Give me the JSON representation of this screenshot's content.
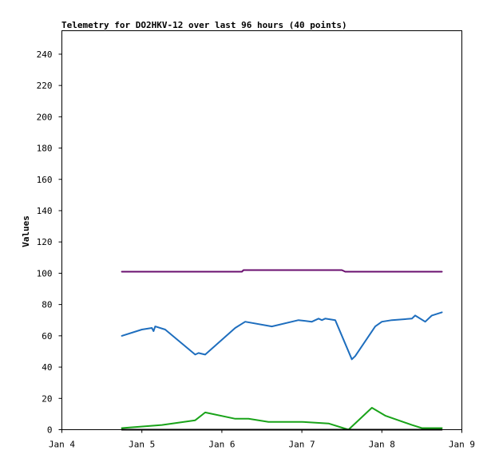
{
  "chart_data": {
    "type": "line",
    "title": "Telemetry for DO2HKV-12 over last 96 hours (40 points)",
    "xlabel": "",
    "ylabel": "Values",
    "xlim": [
      "Jan 4",
      "Jan 9"
    ],
    "ylim": [
      0,
      255
    ],
    "x_ticks": [
      "Jan 4",
      "Jan 5",
      "Jan 6",
      "Jan 7",
      "Jan 8",
      "Jan 9"
    ],
    "y_ticks": [
      0,
      20,
      40,
      60,
      80,
      100,
      120,
      140,
      160,
      180,
      200,
      220,
      240
    ],
    "grid": false,
    "legend": "none",
    "series": [
      {
        "color": "#6a0f6f",
        "points": [
          [
            "Jan 4 18:00",
            101
          ],
          [
            "Jan 5 12:00",
            101
          ],
          [
            "Jan 6 06:00",
            101
          ],
          [
            "Jan 6 06:30",
            102
          ],
          [
            "Jan 7 12:00",
            102
          ],
          [
            "Jan 7 13:00",
            101
          ],
          [
            "Jan 8 18:00",
            101
          ]
        ]
      },
      {
        "color": "#1e6ebe",
        "points": [
          [
            "Jan 4 18:00",
            60
          ],
          [
            "Jan 5 00:00",
            64
          ],
          [
            "Jan 5 03:00",
            65
          ],
          [
            "Jan 5 03:30",
            63
          ],
          [
            "Jan 5 04:00",
            66
          ],
          [
            "Jan 5 07:00",
            64
          ],
          [
            "Jan 5 16:00",
            48
          ],
          [
            "Jan 5 17:00",
            49
          ],
          [
            "Jan 5 19:00",
            48
          ],
          [
            "Jan 6 04:00",
            65
          ],
          [
            "Jan 6 07:00",
            69
          ],
          [
            "Jan 6 15:00",
            66
          ],
          [
            "Jan 6 23:00",
            70
          ],
          [
            "Jan 7 03:00",
            69
          ],
          [
            "Jan 7 05:00",
            71
          ],
          [
            "Jan 7 06:00",
            70
          ],
          [
            "Jan 7 07:00",
            71
          ],
          [
            "Jan 7 10:00",
            70
          ],
          [
            "Jan 7 15:00",
            45
          ],
          [
            "Jan 7 16:00",
            47
          ],
          [
            "Jan 7 22:00",
            66
          ],
          [
            "Jan 8 00:00",
            69
          ],
          [
            "Jan 8 03:00",
            70
          ],
          [
            "Jan 8 09:00",
            71
          ],
          [
            "Jan 8 10:00",
            73
          ],
          [
            "Jan 8 13:00",
            69
          ],
          [
            "Jan 8 15:00",
            73
          ],
          [
            "Jan 8 18:00",
            75
          ]
        ]
      },
      {
        "color": "#19a319",
        "points": [
          [
            "Jan 4 18:00",
            1
          ],
          [
            "Jan 5 06:00",
            3
          ],
          [
            "Jan 5 16:00",
            6
          ],
          [
            "Jan 5 19:00",
            11
          ],
          [
            "Jan 6 04:00",
            7
          ],
          [
            "Jan 6 08:00",
            7
          ],
          [
            "Jan 6 14:00",
            5
          ],
          [
            "Jan 7 00:00",
            5
          ],
          [
            "Jan 7 08:00",
            4
          ],
          [
            "Jan 7 14:00",
            0
          ],
          [
            "Jan 7 21:00",
            14
          ],
          [
            "Jan 8 01:00",
            9
          ],
          [
            "Jan 8 09:00",
            3
          ],
          [
            "Jan 8 12:00",
            1
          ],
          [
            "Jan 8 18:00",
            1
          ]
        ]
      },
      {
        "color": "#000000",
        "points": [
          [
            "Jan 4 18:00",
            0
          ],
          [
            "Jan 8 18:00",
            0
          ]
        ]
      }
    ]
  }
}
